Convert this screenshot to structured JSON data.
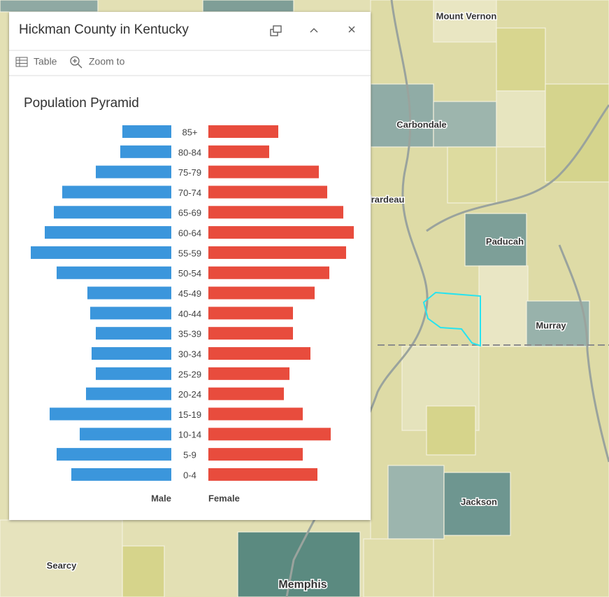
{
  "popup": {
    "title": "Hickman County in Kentucky",
    "actions": [
      "Table",
      "Zoom to"
    ]
  },
  "chart_data": {
    "type": "pyramid",
    "title": "Population Pyramid",
    "categories": [
      "85+",
      "80-84",
      "75-79",
      "70-74",
      "65-69",
      "60-64",
      "55-59",
      "50-54",
      "45-49",
      "40-44",
      "35-39",
      "30-34",
      "25-29",
      "20-24",
      "15-19",
      "10-14",
      "5-9",
      "0-4"
    ],
    "series": [
      {
        "name": "Male",
        "color": "#3b96dc",
        "values": [
          70,
          73,
          108,
          156,
          168,
          181,
          201,
          164,
          120,
          116,
          108,
          114,
          108,
          122,
          174,
          131,
          164,
          143
        ]
      },
      {
        "name": "Female",
        "color": "#e84c3d",
        "values": [
          100,
          87,
          158,
          170,
          193,
          208,
          197,
          173,
          152,
          121,
          121,
          146,
          116,
          108,
          135,
          175,
          135,
          156
        ]
      }
    ]
  },
  "map": {
    "labels": [
      "Mount Vernon",
      "Carbondale",
      "Cape Girardeau",
      "Paducah",
      "Murray",
      "Jackson",
      "Searcy",
      "Memphis"
    ]
  }
}
